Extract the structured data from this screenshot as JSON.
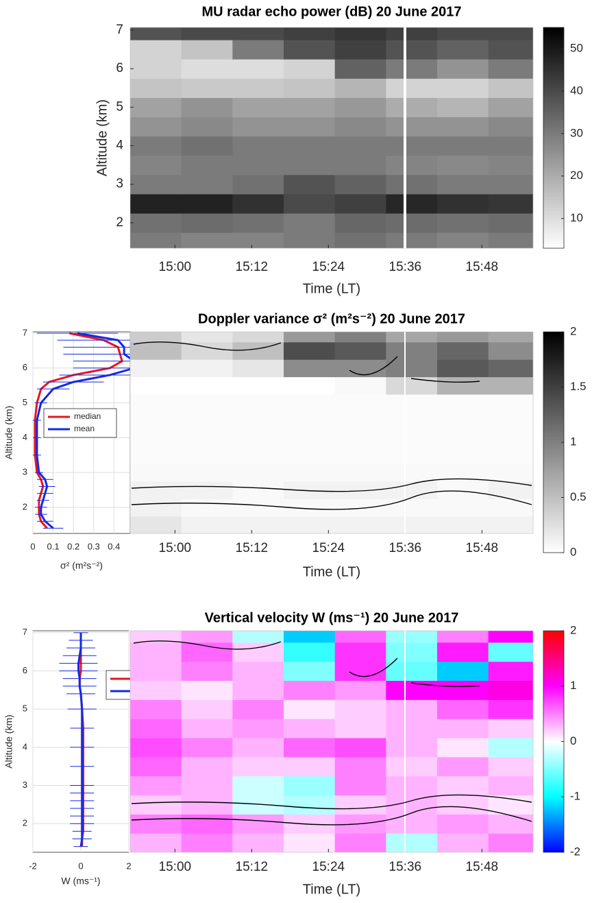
{
  "chart_data": [
    {
      "type": "heatmap",
      "title": "MU radar echo power (dB) 20 June 2017",
      "xlabel": "Time (LT)",
      "ylabel": "Altitude (km)",
      "xlim": [
        "14:53",
        "15:56"
      ],
      "xticks": [
        "15:00",
        "15:12",
        "15:24",
        "15:36",
        "15:48"
      ],
      "ylim": [
        1.34,
        7.07
      ],
      "yticks": [
        2,
        3,
        4,
        5,
        6,
        7
      ],
      "x": [
        "14:57",
        "15:05",
        "15:13",
        "15:21",
        "15:29",
        "15:37",
        "15:45",
        "15:53"
      ],
      "y": [
        1.5,
        2.0,
        2.5,
        3.0,
        3.5,
        4.0,
        4.5,
        5.0,
        5.5,
        6.0,
        6.5,
        7.0
      ],
      "z": [
        [
          30,
          28,
          28,
          30,
          32,
          30,
          28,
          30
        ],
        [
          32,
          33,
          32,
          30,
          34,
          33,
          32,
          33
        ],
        [
          48,
          48,
          45,
          40,
          42,
          47,
          45,
          44
        ],
        [
          30,
          30,
          32,
          38,
          35,
          32,
          30,
          30
        ],
        [
          28,
          30,
          30,
          30,
          30,
          28,
          27,
          28
        ],
        [
          30,
          32,
          30,
          30,
          30,
          30,
          30,
          30
        ],
        [
          25,
          27,
          25,
          25,
          27,
          25,
          25,
          27
        ],
        [
          22,
          25,
          22,
          22,
          24,
          20,
          18,
          22
        ],
        [
          15,
          14,
          14,
          15,
          18,
          12,
          12,
          15
        ],
        [
          12,
          10,
          10,
          12,
          35,
          30,
          25,
          30
        ],
        [
          12,
          15,
          30,
          38,
          42,
          38,
          35,
          38
        ],
        [
          38,
          40,
          40,
          42,
          44,
          42,
          40,
          40
        ]
      ],
      "colormap": "gray_r",
      "clim": [
        3,
        55
      ],
      "cticks": [
        10,
        20,
        30,
        40,
        50
      ]
    },
    {
      "type": "line",
      "xlabel": "σ² (m²s⁻²)",
      "ylabel": "Altitude (km)",
      "xlim": [
        0,
        0.48
      ],
      "xticks": [
        0,
        0.1,
        0.2,
        0.3,
        0.4
      ],
      "ylim": [
        1.25,
        7.04
      ],
      "yticks": [
        2,
        3,
        4,
        5,
        6,
        7
      ],
      "grid": true,
      "legend": "center",
      "y": [
        1.4,
        1.6,
        1.8,
        2.0,
        2.2,
        2.4,
        2.6,
        2.8,
        3.0,
        3.5,
        4.0,
        4.5,
        5.0,
        5.4,
        5.6,
        5.8,
        6.0,
        6.2,
        6.4,
        6.6,
        6.8,
        7.0
      ],
      "series": [
        {
          "name": "median",
          "color": "#e8141e",
          "values": [
            0.07,
            0.04,
            0.03,
            0.03,
            0.03,
            0.04,
            0.05,
            0.04,
            0.02,
            0.01,
            0.01,
            0.01,
            0.02,
            0.04,
            0.08,
            0.2,
            0.38,
            0.44,
            0.43,
            0.42,
            0.35,
            0.18
          ]
        },
        {
          "name": "mean",
          "color": "#1428e6",
          "values": [
            0.1,
            0.06,
            0.04,
            0.04,
            0.05,
            0.06,
            0.07,
            0.06,
            0.03,
            0.02,
            0.02,
            0.02,
            0.04,
            0.1,
            0.2,
            0.38,
            0.5,
            0.5,
            0.45,
            0.45,
            0.42,
            0.22
          ],
          "errors": [
            0.05,
            0.04,
            0.03,
            0.03,
            0.03,
            0.04,
            0.04,
            0.04,
            0.02,
            0.02,
            0.02,
            0.02,
            0.03,
            0.08,
            0.15,
            0.25,
            0.3,
            0.3,
            0.3,
            0.3,
            0.3,
            0.2
          ]
        }
      ]
    },
    {
      "type": "heatmap",
      "title": "Doppler variance σ² (m²s⁻²) 20 June 2017",
      "xlabel": "Time (LT)",
      "xlim": [
        "14:53",
        "15:56"
      ],
      "xticks": [
        "15:00",
        "15:12",
        "15:24",
        "15:36",
        "15:48"
      ],
      "ylim": [
        1.25,
        7.04
      ],
      "x": [
        "14:57",
        "15:05",
        "15:13",
        "15:21",
        "15:29",
        "15:37",
        "15:45",
        "15:53"
      ],
      "y": [
        1.5,
        2.0,
        2.5,
        3.0,
        3.5,
        4.0,
        4.5,
        5.0,
        5.5,
        6.0,
        6.5,
        7.0
      ],
      "z": [
        [
          0.2,
          0.1,
          0.1,
          0.1,
          0.1,
          0.1,
          0.1,
          0.1
        ],
        [
          0.1,
          0.05,
          0.05,
          0.05,
          0.05,
          0.05,
          0.05,
          0.05
        ],
        [
          0.1,
          0.1,
          0.05,
          0.1,
          0.1,
          0.1,
          0.05,
          0.1
        ],
        [
          0.05,
          0.05,
          0.05,
          0.05,
          0.05,
          0.05,
          0.05,
          0.05
        ],
        [
          0.03,
          0.03,
          0.03,
          0.03,
          0.03,
          0.03,
          0.03,
          0.03
        ],
        [
          0.03,
          0.03,
          0.03,
          0.03,
          0.03,
          0.03,
          0.03,
          0.03
        ],
        [
          0.03,
          0.03,
          0.03,
          0.03,
          0.03,
          0.03,
          0.03,
          0.03
        ],
        [
          0.03,
          0.03,
          0.03,
          0.03,
          0.03,
          0.03,
          0.03,
          0.03
        ],
        [
          0,
          0,
          0,
          0,
          0.05,
          0.3,
          0.6,
          0.6
        ],
        [
          0.1,
          0.1,
          0.2,
          0.9,
          0.9,
          1.0,
          1.3,
          1.2
        ],
        [
          0.5,
          0.3,
          0.5,
          1.4,
          1.3,
          1.0,
          1.2,
          0.9
        ],
        [
          0.4,
          0.2,
          0.3,
          0.8,
          1.0,
          0.7,
          0.8,
          0.7
        ]
      ],
      "colormap": "gray_r",
      "clim": [
        0,
        2
      ],
      "cticks": [
        0,
        0.5,
        1,
        1.5,
        2
      ]
    },
    {
      "type": "line",
      "xlabel": "W (ms⁻¹)",
      "ylabel": "Altitude (km)",
      "xlim": [
        -2,
        2
      ],
      "xticks": [
        -2,
        0,
        2
      ],
      "ylim": [
        1.25,
        7.05
      ],
      "yticks": [
        2,
        3,
        4,
        5,
        6,
        7
      ],
      "grid": true,
      "legend": "upper right",
      "y": [
        1.4,
        1.6,
        1.8,
        2.0,
        2.2,
        2.4,
        2.6,
        2.8,
        3.0,
        3.5,
        4.0,
        4.5,
        5.0,
        5.4,
        5.6,
        5.8,
        6.0,
        6.2,
        6.4,
        6.6,
        6.8,
        7.0
      ],
      "series": [
        {
          "name": "median",
          "color": "#e8141e",
          "values": [
            0.05,
            0.05,
            0.1,
            0.1,
            0.1,
            0.1,
            0.1,
            0.1,
            0.1,
            0.1,
            0.1,
            0.1,
            0.05,
            0,
            -0.05,
            -0.05,
            0,
            0,
            0,
            0,
            0,
            0
          ]
        },
        {
          "name": "mean",
          "color": "#1428e6",
          "values": [
            0,
            0.05,
            0.05,
            0.05,
            0.05,
            0.05,
            0.05,
            0.05,
            0.05,
            0.05,
            0.05,
            0.05,
            0.05,
            0,
            -0.05,
            -0.05,
            -0.1,
            -0.1,
            -0.05,
            0,
            0,
            0
          ],
          "errors": [
            0.3,
            0.4,
            0.4,
            0.5,
            0.5,
            0.5,
            0.5,
            0.5,
            0.5,
            0.5,
            0.5,
            0.5,
            0.6,
            0.6,
            0.7,
            0.7,
            0.8,
            0.8,
            0.7,
            0.6,
            0.5,
            0.3
          ]
        }
      ]
    },
    {
      "type": "heatmap",
      "title": "Vertical velocity W (ms⁻¹) 20 June 2017",
      "xlabel": "Time (LT)",
      "xlim": [
        "14:53",
        "15:56"
      ],
      "xticks": [
        "15:00",
        "15:12",
        "15:24",
        "15:36",
        "15:48"
      ],
      "ylim": [
        1.25,
        7.05
      ],
      "x": [
        "14:57",
        "15:05",
        "15:13",
        "15:21",
        "15:29",
        "15:37",
        "15:45",
        "15:53"
      ],
      "y": [
        1.5,
        2.0,
        2.5,
        3.0,
        3.5,
        4.0,
        4.5,
        5.0,
        5.5,
        6.0,
        6.5,
        7.0
      ],
      "z": [
        [
          0.3,
          0.5,
          0.3,
          0.1,
          0.5,
          -0.3,
          0.3,
          0.5
        ],
        [
          0.5,
          0.6,
          0.4,
          0.2,
          0.4,
          0.3,
          0.4,
          0.3
        ],
        [
          0.2,
          0.3,
          -0.2,
          -0.3,
          0.2,
          0.3,
          0.2,
          0.1
        ],
        [
          0.4,
          0.3,
          -0.2,
          -0.4,
          0.5,
          0.3,
          0.2,
          0.3
        ],
        [
          0.6,
          0.3,
          0.2,
          0.2,
          0.5,
          0.2,
          0.4,
          0.2
        ],
        [
          0.7,
          0.5,
          0.3,
          0.6,
          0.7,
          0.3,
          0.1,
          -0.3
        ],
        [
          0.6,
          0.3,
          0.4,
          0.3,
          0.2,
          0.3,
          0.3,
          0.2
        ],
        [
          0.5,
          0.2,
          0.5,
          0.1,
          0.2,
          0.3,
          0.6,
          0.8
        ],
        [
          0.2,
          0.1,
          0.3,
          0.5,
          0.4,
          1.0,
          1.0,
          1.1
        ],
        [
          0.3,
          0.5,
          0.3,
          -0.5,
          0.8,
          -0.6,
          -1.2,
          0.9
        ],
        [
          0.3,
          0.6,
          0.2,
          -0.8,
          0.8,
          -0.5,
          0.9,
          -0.6
        ],
        [
          0.2,
          0.4,
          -0.3,
          -1.2,
          0.6,
          -0.4,
          0.5,
          1.0
        ]
      ],
      "colormap": "bwr",
      "clim": [
        -2,
        2
      ],
      "cticks": [
        -2,
        -1,
        0,
        1,
        2
      ]
    }
  ]
}
